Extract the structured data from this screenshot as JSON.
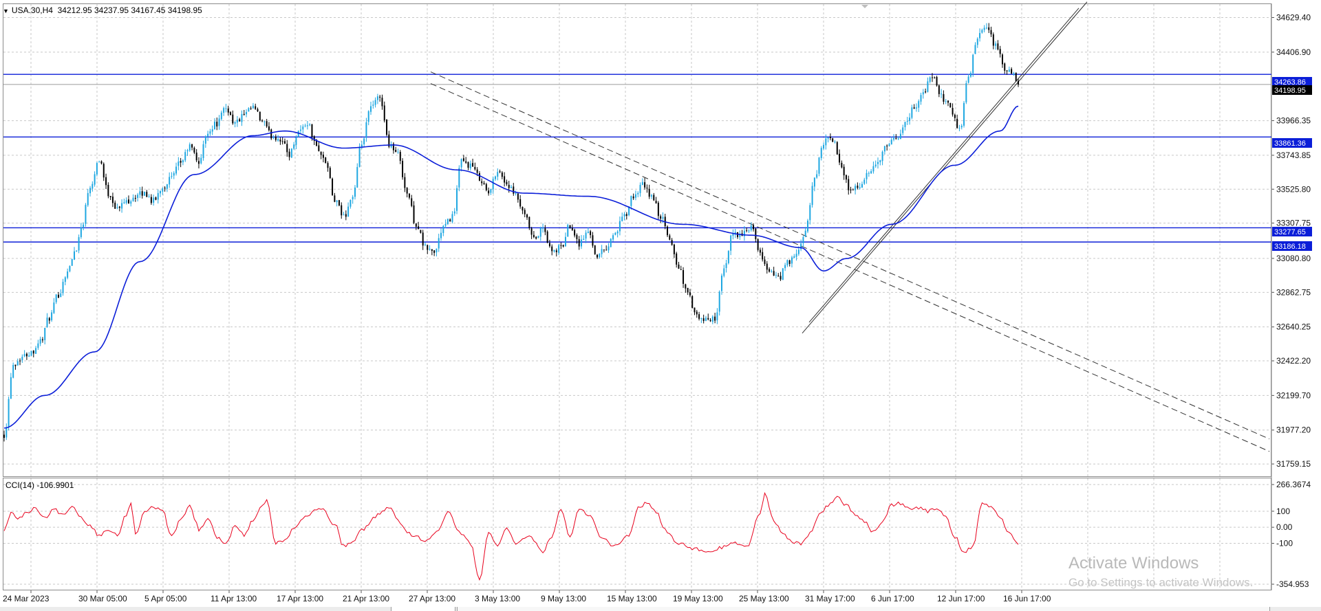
{
  "window": {
    "symbol": "USA.30,H4",
    "ohlc": "34212.95 34237.95 34167.45 34198.95"
  },
  "colors": {
    "bull": "#1ea7e1",
    "bear": "#000000",
    "ma": "#0b1ed8",
    "hline": "#0b1ed8",
    "cci": "#e8001c",
    "grid": "#c7c7c7",
    "trend": "#333333"
  },
  "chart_data": [
    {
      "type": "candlestick",
      "series": [
        {
          "name": "",
          "kind": "candles",
          "anchors": [
            [
              0,
              31950
            ],
            [
              4,
              32400
            ],
            [
              8,
              32450
            ],
            [
              12,
              32480
            ],
            [
              16,
              32550
            ],
            [
              20,
              32700
            ],
            [
              24,
              32850
            ],
            [
              28,
              33000
            ],
            [
              32,
              33150
            ],
            [
              34,
              33280
            ],
            [
              38,
              33550
            ],
            [
              42,
              33720
            ],
            [
              46,
              33500
            ],
            [
              50,
              33400
            ],
            [
              54,
              33450
            ],
            [
              58,
              33480
            ],
            [
              62,
              33500
            ],
            [
              66,
              33450
            ],
            [
              70,
              33540
            ],
            [
              74,
              33600
            ],
            [
              78,
              33700
            ],
            [
              82,
              33800
            ],
            [
              86,
              33700
            ],
            [
              90,
              33900
            ],
            [
              94,
              33950
            ],
            [
              98,
              34050
            ],
            [
              102,
              33950
            ],
            [
              106,
              34000
            ],
            [
              110,
              34050
            ],
            [
              114,
              33960
            ],
            [
              118,
              33870
            ],
            [
              122,
              33850
            ],
            [
              126,
              33750
            ],
            [
              130,
              33900
            ],
            [
              134,
              33950
            ],
            [
              138,
              33800
            ],
            [
              142,
              33700
            ],
            [
              146,
              33450
            ],
            [
              150,
              33350
            ],
            [
              154,
              33480
            ],
            [
              158,
              33820
            ],
            [
              162,
              34050
            ],
            [
              166,
              34120
            ],
            [
              170,
              33820
            ],
            [
              174,
              33750
            ],
            [
              178,
              33500
            ],
            [
              182,
              33300
            ],
            [
              186,
              33150
            ],
            [
              190,
              33120
            ],
            [
              194,
              33280
            ],
            [
              198,
              33350
            ],
            [
              202,
              33700
            ],
            [
              206,
              33680
            ],
            [
              210,
              33600
            ],
            [
              214,
              33500
            ],
            [
              218,
              33650
            ],
            [
              222,
              33560
            ],
            [
              226,
              33480
            ],
            [
              230,
              33350
            ],
            [
              234,
              33200
            ],
            [
              238,
              33270
            ],
            [
              242,
              33120
            ],
            [
              246,
              33150
            ],
            [
              250,
              33300
            ],
            [
              254,
              33180
            ],
            [
              258,
              33250
            ],
            [
              262,
              33100
            ],
            [
              266,
              33150
            ],
            [
              270,
              33250
            ],
            [
              274,
              33350
            ],
            [
              278,
              33480
            ],
            [
              282,
              33550
            ],
            [
              286,
              33480
            ],
            [
              290,
              33350
            ],
            [
              294,
              33200
            ],
            [
              298,
              33020
            ],
            [
              302,
              32850
            ],
            [
              306,
              32700
            ],
            [
              310,
              32680
            ],
            [
              314,
              32700
            ],
            [
              318,
              33000
            ],
            [
              322,
              33250
            ],
            [
              326,
              33230
            ],
            [
              330,
              33280
            ],
            [
              334,
              33100
            ],
            [
              338,
              33000
            ],
            [
              342,
              32950
            ],
            [
              346,
              33050
            ],
            [
              350,
              33100
            ],
            [
              354,
              33250
            ],
            [
              358,
              33600
            ],
            [
              362,
              33830
            ],
            [
              366,
              33850
            ],
            [
              370,
              33650
            ],
            [
              374,
              33520
            ],
            [
              378,
              33550
            ],
            [
              382,
              33620
            ],
            [
              386,
              33700
            ],
            [
              390,
              33800
            ],
            [
              394,
              33850
            ],
            [
              398,
              33950
            ],
            [
              402,
              34050
            ],
            [
              406,
              34150
            ],
            [
              410,
              34250
            ],
            [
              414,
              34120
            ],
            [
              418,
              34050
            ],
            [
              422,
              33900
            ],
            [
              426,
              34250
            ],
            [
              430,
              34500
            ],
            [
              434,
              34560
            ],
            [
              438,
              34450
            ],
            [
              442,
              34300
            ],
            [
              446,
              34250
            ],
            [
              448,
              34198.95
            ]
          ]
        }
      ],
      "ma": {
        "name": "",
        "anchors": [
          [
            0,
            31990
          ],
          [
            18,
            32200
          ],
          [
            40,
            32480
          ],
          [
            60,
            33060
          ],
          [
            84,
            33620
          ],
          [
            110,
            33870
          ],
          [
            124,
            33900
          ],
          [
            150,
            33790
          ],
          [
            172,
            33810
          ],
          [
            200,
            33650
          ],
          [
            230,
            33500
          ],
          [
            258,
            33480
          ],
          [
            300,
            33300
          ],
          [
            330,
            33230
          ],
          [
            352,
            33150
          ],
          [
            362,
            33000
          ],
          [
            372,
            33080
          ],
          [
            392,
            33300
          ],
          [
            420,
            33680
          ],
          [
            440,
            33900
          ],
          [
            448,
            34060
          ]
        ]
      },
      "horizontal_levels": [
        34263.86,
        33861.36,
        33277.65,
        33186.18
      ],
      "current_price": 34198.95,
      "ylim": [
        31680,
        34720
      ],
      "y_ticks": [
        34629.4,
        34406.9,
        33966.35,
        33743.85,
        33525.8,
        33307.75,
        33080.8,
        32862.75,
        32640.25,
        32422.2,
        32199.7,
        31977.2,
        31759.15
      ],
      "x_labels": [
        "24 Mar 2023",
        "30 Mar 05:00",
        "5 Apr 05:00",
        "11 Apr 13:00",
        "17 Apr 13:00",
        "21 Apr 13:00",
        "27 Apr 13:00",
        "3 May 13:00",
        "9 May 13:00",
        "15 May 13:00",
        "19 May 13:00",
        "25 May 13:00",
        "31 May 17:00",
        "6 Jun 17:00",
        "12 Jun 17:00",
        "16 Jun 17:00"
      ],
      "trendlines": [
        {
          "style": "dashed",
          "points": [
            [
              626,
              34280
            ],
            [
              1845,
              31920
            ]
          ]
        },
        {
          "style": "dashed",
          "points": [
            [
              626,
              34205
            ],
            [
              1845,
              31840
            ]
          ]
        },
        {
          "style": "solid",
          "points": [
            [
              1166,
              32600
            ],
            [
              1580,
              34730
            ]
          ]
        },
        {
          "style": "solid",
          "points": [
            [
              1176,
              32670
            ],
            [
              1568,
              34690
            ]
          ]
        }
      ],
      "bars": 449
    },
    {
      "type": "line",
      "title": "CCI(14) -106.9901",
      "ylim": [
        -354.953,
        266.3674
      ],
      "y_ticks": [
        266.3674,
        100,
        0.0,
        -100,
        -354.953
      ],
      "series": [
        {
          "name": "",
          "kind": "cci",
          "anchors": [
            [
              0,
              -20
            ],
            [
              3,
              90
            ],
            [
              6,
              60
            ],
            [
              10,
              90
            ],
            [
              14,
              120
            ],
            [
              18,
              60
            ],
            [
              22,
              110
            ],
            [
              26,
              80
            ],
            [
              30,
              130
            ],
            [
              34,
              60
            ],
            [
              38,
              10
            ],
            [
              42,
              -50
            ],
            [
              46,
              -10
            ],
            [
              50,
              -50
            ],
            [
              54,
              80
            ],
            [
              56,
              160
            ],
            [
              58,
              -40
            ],
            [
              62,
              90
            ],
            [
              66,
              130
            ],
            [
              70,
              100
            ],
            [
              74,
              -60
            ],
            [
              78,
              50
            ],
            [
              82,
              140
            ],
            [
              84,
              60
            ],
            [
              86,
              -20
            ],
            [
              90,
              60
            ],
            [
              94,
              -60
            ],
            [
              98,
              -100
            ],
            [
              102,
              10
            ],
            [
              106,
              -50
            ],
            [
              110,
              40
            ],
            [
              114,
              140
            ],
            [
              116,
              170
            ],
            [
              120,
              -100
            ],
            [
              124,
              -80
            ],
            [
              128,
              -10
            ],
            [
              134,
              80
            ],
            [
              140,
              120
            ],
            [
              146,
              20
            ],
            [
              150,
              -120
            ],
            [
              154,
              -90
            ],
            [
              158,
              -20
            ],
            [
              164,
              70
            ],
            [
              170,
              130
            ],
            [
              174,
              40
            ],
            [
              178,
              -30
            ],
            [
              182,
              -60
            ],
            [
              186,
              -90
            ],
            [
              192,
              -10
            ],
            [
              196,
              90
            ],
            [
              202,
              -40
            ],
            [
              206,
              -100
            ],
            [
              210,
              -320
            ],
            [
              214,
              -40
            ],
            [
              218,
              -120
            ],
            [
              222,
              -10
            ],
            [
              226,
              -100
            ],
            [
              232,
              -60
            ],
            [
              238,
              -150
            ],
            [
              242,
              -60
            ],
            [
              246,
              110
            ],
            [
              250,
              -70
            ],
            [
              254,
              110
            ],
            [
              258,
              80
            ],
            [
              264,
              -60
            ],
            [
              270,
              -120
            ],
            [
              276,
              -50
            ],
            [
              280,
              120
            ],
            [
              284,
              150
            ],
            [
              288,
              100
            ],
            [
              292,
              -20
            ],
            [
              298,
              -100
            ],
            [
              304,
              -130
            ],
            [
              310,
              -160
            ],
            [
              316,
              -130
            ],
            [
              322,
              -100
            ],
            [
              328,
              -120
            ],
            [
              334,
              90
            ],
            [
              336,
              210
            ],
            [
              340,
              40
            ],
            [
              344,
              -40
            ],
            [
              348,
              -90
            ],
            [
              352,
              -100
            ],
            [
              356,
              -40
            ],
            [
              360,
              80
            ],
            [
              364,
              140
            ],
            [
              368,
              190
            ],
            [
              372,
              140
            ],
            [
              376,
              80
            ],
            [
              380,
              40
            ],
            [
              384,
              -30
            ],
            [
              388,
              30
            ],
            [
              392,
              140
            ],
            [
              396,
              150
            ],
            [
              400,
              120
            ],
            [
              404,
              120
            ],
            [
              408,
              100
            ],
            [
              412,
              120
            ],
            [
              416,
              60
            ],
            [
              420,
              -60
            ],
            [
              424,
              -160
            ],
            [
              428,
              -120
            ],
            [
              432,
              160
            ],
            [
              436,
              120
            ],
            [
              440,
              60
            ],
            [
              444,
              -40
            ],
            [
              448,
              -107
            ]
          ]
        }
      ],
      "bars": 449
    }
  ],
  "price_labels": {
    "l1": "34263.86",
    "l2": "34198.95",
    "l3": "33861.36",
    "l4": "33277.65",
    "l5": "33186.18"
  },
  "watermark": {
    "line1": "Activate Windows",
    "line2": "Go to Settings to activate Windows."
  }
}
